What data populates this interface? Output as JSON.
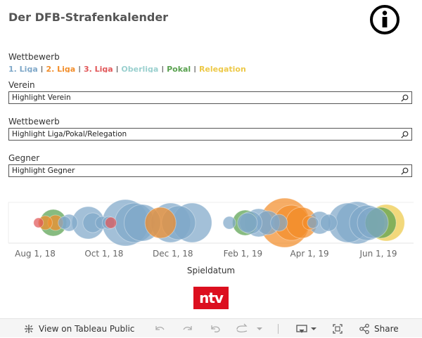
{
  "title": "Der DFB-Strafenkalender",
  "legend": {
    "title": "Wettbewerb",
    "items": [
      {
        "label": "1. Liga",
        "color": "#7fa8c9"
      },
      {
        "label": "2. Liga",
        "color": "#f28e2b"
      },
      {
        "label": "3. Liga",
        "color": "#e15759"
      },
      {
        "label": "Oberliga",
        "color": "#9ad0cf"
      },
      {
        "label": "Pokal",
        "color": "#59a14f"
      },
      {
        "label": "Relegation",
        "color": "#edc948"
      }
    ]
  },
  "filters": [
    {
      "label": "Verein",
      "placeholder": "Highlight Verein"
    },
    {
      "label": "Wettbewerb",
      "placeholder": "Highlight Liga/Pokal/Relegation"
    },
    {
      "label": "Gegner",
      "placeholder": "Highlight Gegner"
    }
  ],
  "chart_data": {
    "type": "scatter",
    "xlabel": "Spieldatum",
    "x_ticks": [
      "Aug 1, 18",
      "Oct 1, 18",
      "Dec 1, 18",
      "Feb 1, 19",
      "Apr 1, 19",
      "Jun 1, 19"
    ],
    "x_tick_dates": [
      "2018-08-01",
      "2018-10-01",
      "2018-12-01",
      "2019-02-01",
      "2019-04-01",
      "2019-06-01"
    ],
    "xlim": [
      "2018-07-20",
      "2019-06-30"
    ],
    "points": [
      {
        "date": "2018-08-04",
        "size": 7,
        "series": "3. Liga"
      },
      {
        "date": "2018-08-10",
        "size": 10,
        "series": "2. Liga"
      },
      {
        "date": "2018-08-17",
        "size": 19,
        "series": "Pokal"
      },
      {
        "date": "2018-08-19",
        "size": 11,
        "series": "2. Liga"
      },
      {
        "date": "2018-08-27",
        "size": 9,
        "series": "1. Liga"
      },
      {
        "date": "2018-08-31",
        "size": 12,
        "series": "1. Liga"
      },
      {
        "date": "2018-09-17",
        "size": 23,
        "series": "1. Liga"
      },
      {
        "date": "2018-09-21",
        "size": 14,
        "series": "1. Liga"
      },
      {
        "date": "2018-09-29",
        "size": 9,
        "series": "1. Liga"
      },
      {
        "date": "2018-10-05",
        "size": 9,
        "series": "1. Liga"
      },
      {
        "date": "2018-10-07",
        "size": 8,
        "series": "3. Liga"
      },
      {
        "date": "2018-10-20",
        "size": 33,
        "series": "1. Liga"
      },
      {
        "date": "2018-10-28",
        "size": 28,
        "series": "1. Liga"
      },
      {
        "date": "2018-11-04",
        "size": 26,
        "series": "1. Liga"
      },
      {
        "date": "2018-11-20",
        "size": 22,
        "series": "2. Liga"
      },
      {
        "date": "2018-11-29",
        "size": 28,
        "series": "1. Liga"
      },
      {
        "date": "2018-12-06",
        "size": 24,
        "series": "1. Liga"
      },
      {
        "date": "2018-12-18",
        "size": 28,
        "series": "1. Liga"
      },
      {
        "date": "2019-01-20",
        "size": 9,
        "series": "1. Liga"
      },
      {
        "date": "2019-02-03",
        "size": 18,
        "series": "Pokal"
      },
      {
        "date": "2019-02-05",
        "size": 14,
        "series": "1. Liga"
      },
      {
        "date": "2019-02-08",
        "size": 16,
        "series": "1. Liga"
      },
      {
        "date": "2019-02-15",
        "size": 20,
        "series": "1. Liga"
      },
      {
        "date": "2019-02-23",
        "size": 17,
        "series": "1. Liga"
      },
      {
        "date": "2019-03-05",
        "size": 12,
        "series": "1. Liga"
      },
      {
        "date": "2019-03-10",
        "size": 35,
        "series": "2. Liga"
      },
      {
        "date": "2019-03-16",
        "size": 25,
        "series": "2. Liga"
      },
      {
        "date": "2019-03-25",
        "size": 22,
        "series": "2. Liga"
      },
      {
        "date": "2019-04-01",
        "size": 10,
        "series": "2. Liga"
      },
      {
        "date": "2019-04-04",
        "size": 8,
        "series": "1. Liga"
      },
      {
        "date": "2019-04-10",
        "size": 16,
        "series": "1. Liga"
      },
      {
        "date": "2019-04-18",
        "size": 12,
        "series": "1. Liga"
      },
      {
        "date": "2019-05-05",
        "size": 28,
        "series": "1. Liga"
      },
      {
        "date": "2019-05-13",
        "size": 30,
        "series": "1. Liga"
      },
      {
        "date": "2019-05-22",
        "size": 25,
        "series": "1. Liga"
      },
      {
        "date": "2019-06-03",
        "size": 22,
        "series": "Pokal"
      },
      {
        "date": "2019-06-08",
        "size": 26,
        "series": "Relegation"
      },
      {
        "date": "2019-05-27",
        "size": 22,
        "series": "1. Liga"
      }
    ]
  },
  "ntv_logo": "ntv",
  "toolbar": {
    "view_label": "View on Tableau Public",
    "share_label": "Share"
  },
  "icons": [
    "info-icon",
    "search-icon",
    "tableau-icon",
    "undo-icon",
    "redo-icon",
    "revert-icon",
    "refresh-icon",
    "download-icon",
    "fullscreen-icon",
    "share-icon"
  ]
}
